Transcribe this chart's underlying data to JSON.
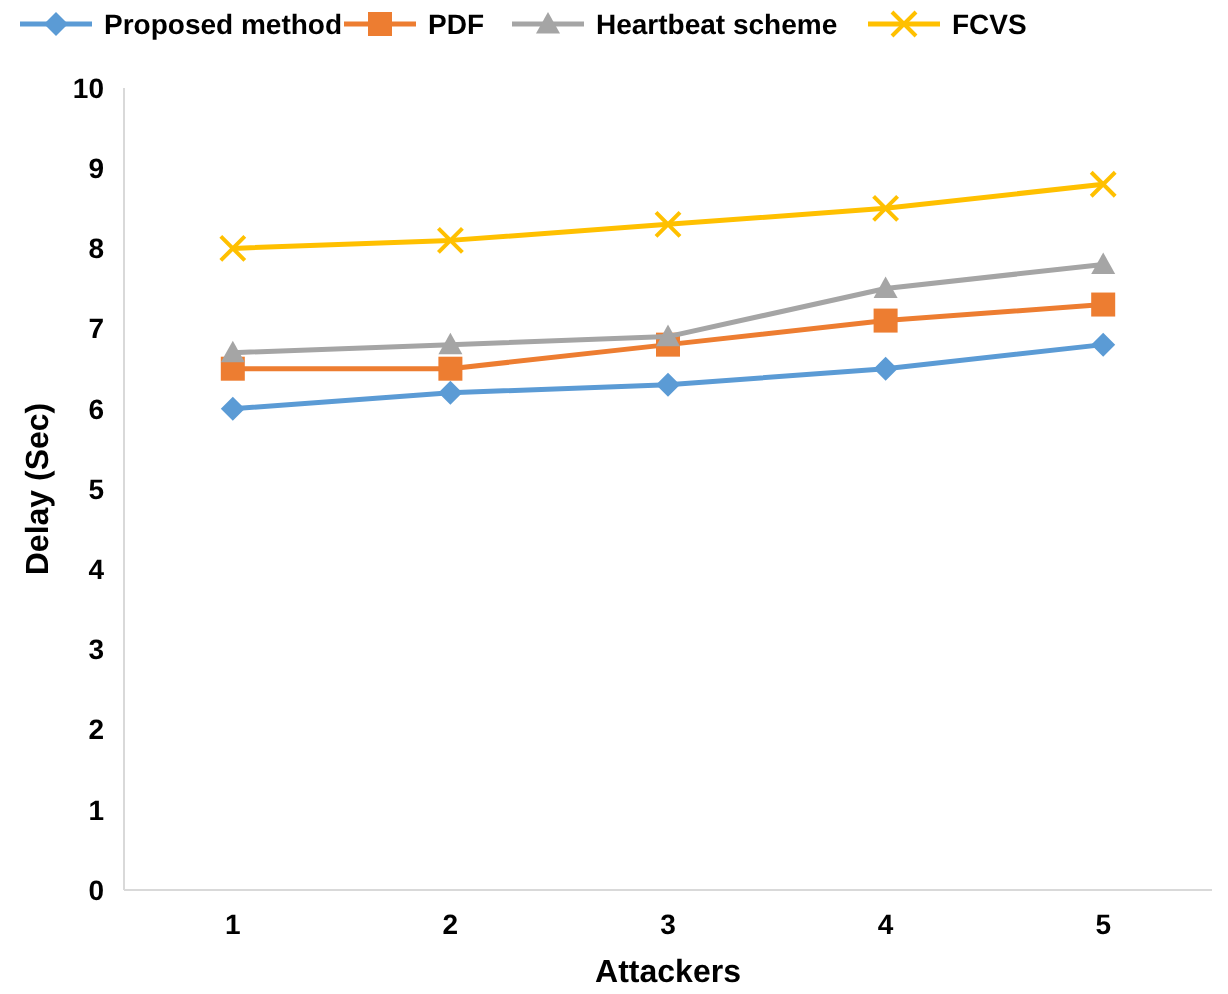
{
  "chart_data": {
    "type": "line",
    "xlabel": "Attackers",
    "ylabel": "Delay (Sec)",
    "categories": [
      "1",
      "2",
      "3",
      "4",
      "5"
    ],
    "ylim": [
      0,
      10
    ],
    "yticks": [
      0,
      1,
      2,
      3,
      4,
      5,
      6,
      7,
      8,
      9,
      10
    ],
    "legend": "top",
    "grid": false,
    "line_style": "solid",
    "series": [
      {
        "name": "Proposed method",
        "color": "#5b9bd5",
        "marker": "diamond",
        "values": [
          6.0,
          6.2,
          6.3,
          6.5,
          6.8
        ]
      },
      {
        "name": "PDF",
        "color": "#ed7d31",
        "marker": "square",
        "values": [
          6.5,
          6.5,
          6.8,
          7.1,
          7.3
        ]
      },
      {
        "name": "Heartbeat scheme",
        "color": "#a5a5a5",
        "marker": "triangle",
        "values": [
          6.7,
          6.8,
          6.9,
          7.5,
          7.8
        ]
      },
      {
        "name": "FCVS",
        "color": "#ffc000",
        "marker": "cross",
        "values": [
          8.0,
          8.1,
          8.3,
          8.5,
          8.8
        ]
      }
    ]
  }
}
